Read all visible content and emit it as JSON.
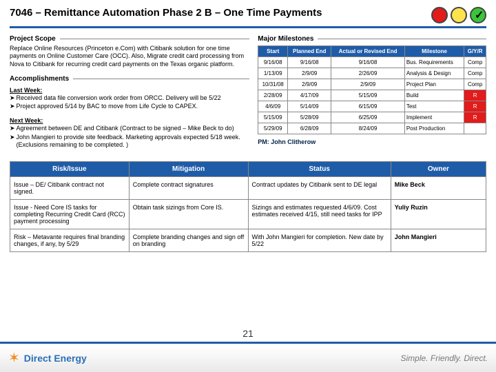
{
  "title": "7046 – Remittance Automation Phase 2 B – One Time Payments",
  "lights": {
    "colors": [
      "#e21b1b",
      "#ffe34d",
      "#39c639"
    ],
    "checkedIndex": 2
  },
  "sections": {
    "projectScope": "Project Scope",
    "accomplishments": "Accomplishments",
    "majorMilestones": "Major Milestones"
  },
  "scopeText": "Replace Online Resources (Princeton e.Com) with Citibank solution for one time payments on Online Customer Care (OCC). Also, Migrate credit card processing from Nova to Citibank for recurring credit card payments on the Texas organic platform.",
  "lastWeek": {
    "heading": "Last Week:",
    "bullets": [
      "Received data file conversion work order from ORCC. Delivery will be 5/22",
      "Project approved 5/14 by BAC to move from Life Cycle to CAPEX."
    ]
  },
  "nextWeek": {
    "heading": "Next Week:",
    "bullets": [
      "Agreement between DE and Citibank (Contract to be signed – Mike Beck to do)",
      "John Mangieri to provide site feedback. Marketing approvals expected 5/18 week. (Exclusions remaining to be completed. )"
    ]
  },
  "pmLabel": "PM: John Clitherow",
  "milestoneHeaders": [
    "Start",
    "Planned End",
    "Actual or Revised End",
    "Milestone",
    "G/Y/R"
  ],
  "milestones": [
    {
      "start": "9/16/08",
      "planned": "9/16/08",
      "actual": "9/16/08",
      "name": "Bus. Requirements",
      "status": "Comp"
    },
    {
      "start": "1/13/09",
      "planned": "2/9/09",
      "actual": "2/26/09",
      "name": "Analysis & Design",
      "status": "Comp"
    },
    {
      "start": "10/31/08",
      "planned": "2/9/09",
      "actual": "2/9/09",
      "name": "Project Plan",
      "status": "Comp"
    },
    {
      "start": "2/28/09",
      "planned": "4/17/09",
      "actual": "5/15/09",
      "name": "Build",
      "status": "R"
    },
    {
      "start": "4/6/09",
      "planned": "5/14/09",
      "actual": "6/15/09",
      "name": "Test",
      "status": "R"
    },
    {
      "start": "5/15/09",
      "planned": "5/28/09",
      "actual": "6/25/09",
      "name": "Implement",
      "status": "R"
    },
    {
      "start": "5/29/09",
      "planned": "6/28/09",
      "actual": "8/24/09",
      "name": "Post Production",
      "status": ""
    }
  ],
  "statusColors": {
    "R_bg": "#e21b1b",
    "R_fg": "#ffffff",
    "Comp_bg": "#ffffff",
    "Comp_fg": "#000000",
    "_bg": "#ffffff",
    "_fg": "#000000"
  },
  "riskHeaders": [
    "Risk/Issue",
    "Mitigation",
    "Status",
    "Owner"
  ],
  "risks": [
    {
      "issue": "Issue – DE/ Citibank contract not signed.",
      "mitigation": "Complete contract signatures",
      "status": "Contract updates by Citibank sent to DE legal",
      "owner": "Mike Beck"
    },
    {
      "issue": "Issue - Need Core IS tasks for completing Recurring Credit Card (RCC) payment processing",
      "mitigation": "Obtain task sizings from Core IS.",
      "status": "Sizings and estimates requested 4/6/09. Cost estimates received 4/15, still need tasks for IPP",
      "owner": "Yuliy Ruzin"
    },
    {
      "issue": "Risk – Metavante requires final branding changes, if any, by 5/29",
      "mitigation": "Complete branding changes and sign off on branding",
      "status": "With John Mangieri for completion. New date by 5/22",
      "owner": "John Mangieri"
    }
  ],
  "pageNumber": "21",
  "footer": {
    "brand": "Direct Energy",
    "tagline": "Simple. Friendly. Direct."
  },
  "styling": {
    "header_blue": "#1f5ca8",
    "border_gray": "#888888",
    "body_font_size": 9,
    "table_font_size": 8,
    "title_font_size": 15
  }
}
